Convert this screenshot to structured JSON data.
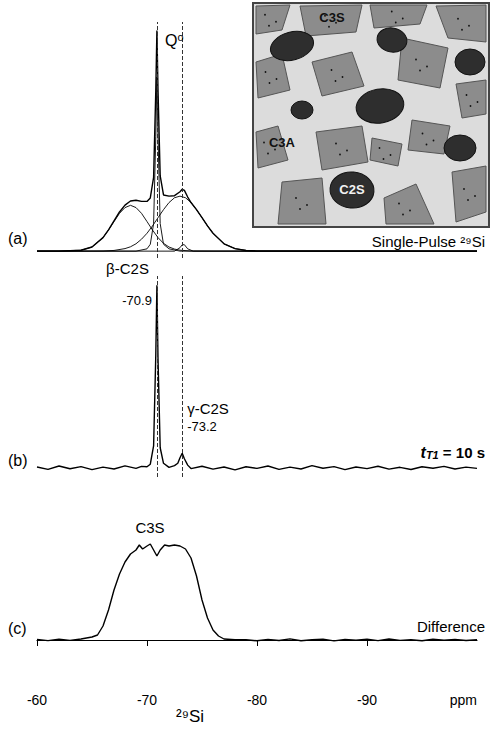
{
  "chart_data": [
    {
      "type": "line",
      "panel": "(a)",
      "title": "Single-Pulse ²⁹Si",
      "annotations": [
        {
          "text": "Q⁰"
        }
      ],
      "reference_lines": [
        -70.9,
        -73.2
      ],
      "xlim": [
        -60,
        -100
      ],
      "ylim": [
        -3,
        100
      ],
      "tick_labels": false,
      "grid": false,
      "series": [
        {
          "x": [
            -60,
            -62,
            -64,
            -65,
            -66,
            -66.5,
            -67,
            -67.5,
            -68,
            -68.5,
            -69,
            -69.5,
            -70,
            -70.3,
            -70.6,
            -70.8,
            -70.9,
            -71.0,
            -71.2,
            -71.5,
            -72,
            -72.5,
            -73,
            -73.2,
            -73.4,
            -73.7,
            -74,
            -74.5,
            -75,
            -75.5,
            -76,
            -77,
            -78,
            -79,
            -80,
            -90,
            -100
          ],
          "values": [
            0,
            0,
            0.4,
            1.8,
            5.9,
            9.3,
            13.2,
            17.1,
            20.1,
            21.9,
            22.2,
            21.7,
            21.7,
            23.2,
            32.2,
            70.2,
            96.3,
            70.5,
            32.8,
            24.5,
            24.0,
            24.2,
            25.9,
            27.0,
            26.5,
            23.6,
            21.2,
            18.1,
            14.6,
            11.0,
            7.8,
            3.2,
            1.1,
            0.3,
            0,
            0,
            0
          ]
        },
        {
          "x": [
            -60,
            -62,
            -64,
            -65,
            -66,
            -66.5,
            -67,
            -67.5,
            -68,
            -68.5,
            -69,
            -69.5,
            -70,
            -70.5,
            -71,
            -71.5,
            -72,
            -72.5,
            -73,
            -74,
            -76,
            -80,
            -100
          ],
          "values": [
            0,
            0,
            0.4,
            1.8,
            5.9,
            9.2,
            12.9,
            16.5,
            19.0,
            20,
            19.0,
            16.5,
            12.9,
            9.2,
            5.9,
            3.4,
            1.8,
            0.9,
            0.4,
            0.05,
            0,
            0,
            0
          ]
        },
        {
          "x": [
            -60,
            -64,
            -66,
            -67,
            -68,
            -68.5,
            -69,
            -69.5,
            -70,
            -70.5,
            -71,
            -71.5,
            -72,
            -72.5,
            -73,
            -73.5,
            -74,
            -74.5,
            -75,
            -75.5,
            -76,
            -77,
            -78,
            -79,
            -80,
            -100
          ],
          "values": [
            0,
            0,
            0.05,
            0.3,
            1.1,
            1.9,
            3.2,
            5.2,
            7.8,
            11.0,
            14.6,
            18.1,
            21.2,
            23.3,
            24,
            23.3,
            21.2,
            18.1,
            14.6,
            11.0,
            7.8,
            3.2,
            1.1,
            0.3,
            0.05,
            0
          ]
        },
        {
          "x": [
            -60,
            -69,
            -70,
            -70.3,
            -70.6,
            -70.8,
            -70.9,
            -71.0,
            -71.2,
            -71.5,
            -72,
            -73,
            -100
          ],
          "values": [
            0,
            0,
            1,
            3,
            12,
            50,
            76,
            50,
            12,
            3,
            1,
            0,
            0
          ]
        },
        {
          "x": [
            -60,
            -72.5,
            -73.0,
            -73.2,
            -73.4,
            -73.7,
            -74.2,
            -100
          ],
          "values": [
            0,
            0,
            1.5,
            2.8,
            2.8,
            1,
            0,
            0
          ]
        }
      ]
    },
    {
      "type": "line",
      "panel": "(b)",
      "note": {
        "main": "t",
        "sub": "T1",
        "rest": " = 10 s"
      },
      "markers": [
        {
          "value": -70.9,
          "label": "β-C2S"
        },
        {
          "value": -73.2,
          "label": "γ-C2S"
        }
      ],
      "xlim": [
        -60,
        -100
      ],
      "ylim": [
        -5,
        105
      ],
      "tick_labels": false,
      "grid": false,
      "series": [
        {
          "x": [
            -60,
            -61,
            -62,
            -63,
            -64,
            -65,
            -66,
            -67,
            -68,
            -69,
            -69.5,
            -70,
            -70.3,
            -70.6,
            -70.8,
            -70.9,
            -71.0,
            -71.2,
            -71.5,
            -72,
            -72.5,
            -72.8,
            -73.0,
            -73.2,
            -73.4,
            -73.7,
            -74,
            -75,
            -76,
            -77,
            -78,
            -79,
            -80,
            -81,
            -82,
            -83,
            -84,
            -85,
            -86,
            -87,
            -88,
            -89,
            -90,
            -91,
            -92,
            -93,
            -94,
            -95,
            -96,
            -97,
            -98,
            -99,
            -100
          ],
          "values": [
            0.5,
            -0.8,
            1.0,
            -0.5,
            0.7,
            -1.0,
            0.4,
            -0.6,
            1.1,
            -0.3,
            0.8,
            0.6,
            2,
            12,
            62,
            100,
            60,
            11,
            2.5,
            0.3,
            1.2,
            2.5,
            5.5,
            8,
            5,
            1.5,
            -0.4,
            0.9,
            -0.7,
            0.5,
            -1.1,
            0.6,
            -0.3,
            1.0,
            -0.8,
            0.4,
            -0.6,
            1.2,
            -0.2,
            0.7,
            -1.0,
            0.5,
            -0.4,
            0.9,
            -0.7,
            0.3,
            -0.9,
            0.6,
            -0.2,
            0.8,
            -0.6,
            0.4,
            -0.3
          ]
        }
      ]
    },
    {
      "type": "line",
      "panel": "(c)",
      "title": "Difference",
      "annotations": [
        {
          "text": "C3S"
        }
      ],
      "xlabel": "²⁹Si",
      "x_unit": "ppm",
      "xlim": [
        -60,
        -100
      ],
      "xticks": [
        -60,
        -70,
        -80,
        -90
      ],
      "ylim": [
        -45,
        100
      ],
      "tick_labels": "x",
      "grid": false,
      "series": [
        {
          "x": [
            -60,
            -61,
            -62,
            -63,
            -64,
            -65,
            -65.5,
            -66,
            -66.5,
            -67,
            -67.5,
            -68,
            -68.5,
            -69,
            -69.3,
            -69.6,
            -70,
            -70.3,
            -70.6,
            -70.9,
            -71.2,
            -71.6,
            -72,
            -72.5,
            -73,
            -73.5,
            -74,
            -74.5,
            -75,
            -75.5,
            -76,
            -76.5,
            -77,
            -78,
            -79,
            -80,
            -81,
            -82,
            -83,
            -84,
            -85,
            -86,
            -87,
            -88,
            -89,
            -90,
            -91,
            -92,
            -93,
            -94,
            -95,
            -96,
            -97,
            -98,
            -99,
            -100
          ],
          "values": [
            0.5,
            -0.6,
            0.8,
            -0.4,
            1.0,
            3,
            5,
            14,
            30,
            50,
            66,
            78,
            86,
            90,
            95,
            91,
            94,
            96,
            90,
            84,
            90,
            95,
            94,
            95,
            94,
            91,
            82,
            64,
            40,
            22,
            10,
            4,
            1,
            0.2,
            0.2,
            -0.8,
            0.6,
            -0.5,
            1.1,
            -0.7,
            0.3,
            0.9,
            -0.9,
            0.5,
            -0.3,
            0.8,
            -0.6,
            1.0,
            -0.4,
            0.2,
            -0.8,
            0.7,
            -0.2,
            0.6,
            -0.5,
            0.3
          ]
        }
      ]
    }
  ],
  "inset": {
    "labels": [
      "C3S",
      "C3A",
      "C2S"
    ]
  }
}
